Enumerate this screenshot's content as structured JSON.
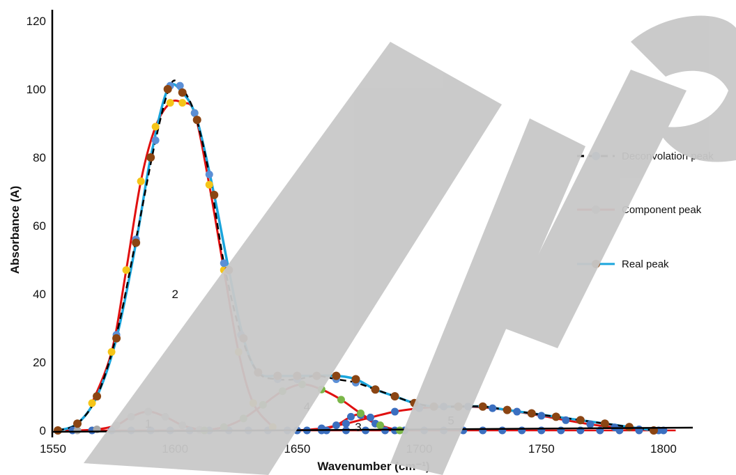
{
  "chart_data": {
    "type": "line",
    "xlabel": "Wavenumber (cm⁻¹)",
    "ylabel": "Absorbance (A)",
    "xlim": [
      1550,
      1808
    ],
    "ylim": [
      0,
      120
    ],
    "x_ticks": [
      "1550",
      "1600",
      "1650",
      "1700",
      "1750",
      "1800"
    ],
    "y_ticks": [
      "0",
      "20",
      "40",
      "60",
      "80",
      "100",
      "120"
    ],
    "legend_position": "right",
    "peak_labels": [
      {
        "text": "1",
        "x": 1589,
        "y": 2
      },
      {
        "text": "2",
        "x": 1600,
        "y": 40
      },
      {
        "text": "3",
        "x": 1675,
        "y": 1
      },
      {
        "text": "4",
        "x": 1654,
        "y": 7
      },
      {
        "text": "5",
        "x": 1713,
        "y": 3
      }
    ],
    "series": [
      {
        "name": "Deconvolation peak",
        "color": "#000000",
        "marker_color": "#5b8fd6",
        "dash": true,
        "x": [
          1552,
          1560,
          1568,
          1576,
          1584,
          1592,
          1598,
          1602,
          1608,
          1614,
          1620,
          1627,
          1634,
          1642,
          1650,
          1658,
          1666,
          1674,
          1682,
          1690,
          1698,
          1706,
          1716,
          1726,
          1736,
          1746,
          1756,
          1766,
          1776,
          1786,
          1796
        ],
        "y": [
          0,
          2,
          10,
          28,
          56,
          85,
          101,
          101,
          93,
          75,
          49,
          28,
          17,
          15,
          15,
          16,
          15,
          14,
          12,
          10,
          8,
          7,
          7,
          7,
          6,
          5,
          4,
          3,
          2,
          1,
          0
        ]
      },
      {
        "name": "Component peak",
        "color": "#e01010",
        "marker_color": "#a8a8a8",
        "dash": false,
        "components": [
          {
            "x": [
              1560,
              1568,
              1576,
              1582,
              1589,
              1596,
              1603,
              1610
            ],
            "y": [
              0,
              0.3,
              1.5,
              4,
              5.5,
              4,
              1.5,
              0.2
            ]
          },
          {
            "x": [
              1566,
              1574,
              1580,
              1586,
              1592,
              1598,
              1603,
              1608,
              1614,
              1620,
              1626,
              1632,
              1640
            ],
            "y": [
              8,
              23,
              47,
              73,
              89,
              96,
              96,
              93,
              72,
              47,
              23,
              8,
              1
            ]
          },
          {
            "x": [
              1660,
              1666,
              1672,
              1676,
              1682,
              1690
            ],
            "y": [
              0,
              1.5,
              4,
              4.5,
              2,
              0
            ]
          },
          {
            "x": [
              1612,
              1620,
              1628,
              1636,
              1644,
              1652,
              1660,
              1668,
              1676,
              1684,
              1692
            ],
            "y": [
              0,
              1,
              3.5,
              7.5,
              11.5,
              13.5,
              12,
              9,
              5,
              1.5,
              0
            ]
          },
          {
            "x": [
              1650,
              1660,
              1670,
              1680,
              1690,
              1700,
              1710,
              1720,
              1730,
              1740,
              1750,
              1760,
              1770,
              1780,
              1790,
              1800
            ],
            "y": [
              0,
              0.6,
              2,
              3.8,
              5.5,
              6.5,
              7,
              7,
              6.5,
              5.5,
              4.3,
              3,
              1.8,
              0.9,
              0.3,
              0
            ]
          }
        ]
      },
      {
        "name": "Real peak",
        "color": "#1aa5dc",
        "marker_color": "#8b4513",
        "dash": false,
        "x": [
          1552,
          1560,
          1568,
          1576,
          1584,
          1590,
          1597,
          1603,
          1609,
          1616,
          1622,
          1628,
          1634,
          1642,
          1650,
          1658,
          1666,
          1674,
          1682,
          1690,
          1698,
          1706,
          1716,
          1726,
          1736,
          1746,
          1756,
          1766,
          1776,
          1786,
          1796
        ],
        "y": [
          0,
          2,
          10,
          27,
          55,
          80,
          100,
          99,
          91,
          69,
          47,
          27,
          17,
          16,
          16,
          16,
          16,
          15,
          12,
          10,
          8,
          7,
          7,
          7,
          6,
          5,
          4,
          3,
          2,
          1,
          0
        ]
      }
    ]
  },
  "watermark": {
    "text": "Accepted"
  }
}
